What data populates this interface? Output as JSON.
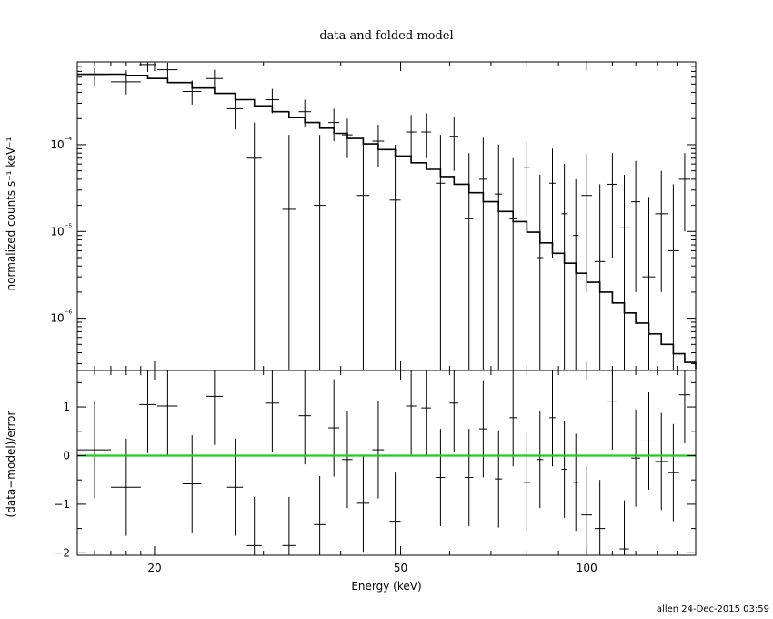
{
  "chart_data": {
    "type": "line",
    "title": "data and folded model",
    "xlabel": "Energy (keV)",
    "x_scale": "log",
    "xlim": [
      15,
      150
    ],
    "x_ticks": [
      {
        "value": 20,
        "label": "20"
      },
      {
        "value": 50,
        "label": "50"
      },
      {
        "value": 100,
        "label": "100"
      }
    ],
    "top_panel": {
      "ylabel": "normalized counts s⁻¹ keV⁻¹",
      "y_scale": "log",
      "ylim": [
        2.5e-07,
        0.0009
      ],
      "y_ticks": [
        {
          "value": 0.0001,
          "label": "10⁻⁴"
        },
        {
          "value": 1e-05,
          "label": "10⁻⁵"
        },
        {
          "value": 1e-06,
          "label": "10⁻⁶"
        }
      ],
      "model": [
        [
          15.0,
          0.00065
        ],
        [
          18.0,
          0.00063
        ],
        [
          19.5,
          0.00058
        ],
        [
          21.0,
          0.00052
        ],
        [
          23.0,
          0.00045
        ],
        [
          25.0,
          0.00039
        ],
        [
          27.0,
          0.00033
        ],
        [
          29.0,
          0.00028
        ],
        [
          31.0,
          0.00024
        ],
        [
          33.0,
          0.000205
        ],
        [
          35.0,
          0.00018
        ],
        [
          37.0,
          0.000155
        ],
        [
          39.0,
          0.000135
        ],
        [
          41.0,
          0.000118
        ],
        [
          43.5,
          0.000102
        ],
        [
          46.0,
          8.8e-05
        ],
        [
          49.0,
          7.4e-05
        ],
        [
          52.0,
          6.2e-05
        ],
        [
          55.0,
          5.2e-05
        ],
        [
          58.0,
          4.3e-05
        ],
        [
          61.0,
          3.5e-05
        ],
        [
          64.5,
          2.8e-05
        ],
        [
          68.0,
          2.2e-05
        ],
        [
          72.0,
          1.7e-05
        ],
        [
          76.0,
          1.3e-05
        ],
        [
          80.0,
          9.8e-06
        ],
        [
          84.0,
          7.4e-06
        ],
        [
          88.0,
          5.6e-06
        ],
        [
          92.0,
          4.3e-06
        ],
        [
          96.0,
          3.3e-06
        ],
        [
          100.0,
          2.6e-06
        ],
        [
          105.0,
          2e-06
        ],
        [
          110.0,
          1.5e-06
        ],
        [
          115.0,
          1.15e-06
        ],
        [
          120.0,
          8.8e-07
        ],
        [
          126.0,
          6.6e-07
        ],
        [
          132.0,
          5e-07
        ],
        [
          138.0,
          3.9e-07
        ],
        [
          144.0,
          3.1e-07
        ],
        [
          150.0,
          2.6e-07
        ]
      ],
      "data": [
        {
          "x": 16.0,
          "xerr": [
            15.0,
            17.0
          ],
          "y": 0.00062,
          "ylo": 0.00048,
          "yhi": 0.00076
        },
        {
          "x": 18.0,
          "xerr": [
            17.0,
            19.0
          ],
          "y": 0.00053,
          "ylo": 0.00038,
          "yhi": 0.00072
        },
        {
          "x": 19.5,
          "xerr": [
            18.9,
            20.1
          ],
          "y": 0.00084,
          "ylo": 0.00069,
          "yhi": 0.0009
        },
        {
          "x": 21.0,
          "xerr": [
            20.2,
            21.8
          ],
          "y": 0.00073,
          "ylo": 0.00058,
          "yhi": 0.00088
        },
        {
          "x": 23.0,
          "xerr": [
            22.2,
            23.8
          ],
          "y": 0.00041,
          "ylo": 0.00029,
          "yhi": 0.00055
        },
        {
          "x": 25.0,
          "xerr": [
            24.2,
            25.8
          ],
          "y": 0.00058,
          "ylo": 0.00043,
          "yhi": 0.00073
        },
        {
          "x": 27.0,
          "xerr": [
            26.2,
            27.8
          ],
          "y": 0.00026,
          "ylo": 0.00015,
          "yhi": 0.00037
        },
        {
          "x": 29.0,
          "xerr": [
            28.2,
            29.8
          ],
          "y": 7e-05,
          "ylo": 2.5e-07,
          "yhi": 0.00018
        },
        {
          "x": 31.0,
          "xerr": [
            30.2,
            31.8
          ],
          "y": 0.00033,
          "ylo": 0.00023,
          "yhi": 0.00044
        },
        {
          "x": 33.0,
          "xerr": [
            32.2,
            33.8
          ],
          "y": 1.8e-05,
          "ylo": 2.5e-07,
          "yhi": 0.00013
        },
        {
          "x": 35.0,
          "xerr": [
            34.2,
            35.8
          ],
          "y": 0.00024,
          "ylo": 0.00016,
          "yhi": 0.00033
        },
        {
          "x": 37.0,
          "xerr": [
            36.2,
            37.8
          ],
          "y": 2e-05,
          "ylo": 2.5e-07,
          "yhi": 0.00013
        },
        {
          "x": 39.0,
          "xerr": [
            38.2,
            39.8
          ],
          "y": 0.00018,
          "ylo": 0.00011,
          "yhi": 0.00026
        },
        {
          "x": 41.0,
          "xerr": [
            40.2,
            41.8
          ],
          "y": 0.00013,
          "ylo": 7e-05,
          "yhi": 0.0002
        },
        {
          "x": 43.5,
          "xerr": [
            42.5,
            44.5
          ],
          "y": 2.6e-05,
          "ylo": 2.5e-07,
          "yhi": 0.00012
        },
        {
          "x": 46.0,
          "xerr": [
            45.0,
            47.0
          ],
          "y": 0.00011,
          "ylo": 5.5e-05,
          "yhi": 0.00017
        },
        {
          "x": 49.0,
          "xerr": [
            48.0,
            50.0
          ],
          "y": 2.3e-05,
          "ylo": 2.5e-07,
          "yhi": 0.0001
        },
        {
          "x": 52.0,
          "xerr": [
            51.0,
            53.0
          ],
          "y": 0.00014,
          "ylo": 7e-05,
          "yhi": 0.00022
        },
        {
          "x": 55.0,
          "xerr": [
            54.0,
            56.0
          ],
          "y": 0.00014,
          "ylo": 7e-05,
          "yhi": 0.00023
        },
        {
          "x": 58.0,
          "xerr": [
            57.0,
            59.0
          ],
          "y": 3.6e-05,
          "ylo": 2.5e-07,
          "yhi": 0.00013
        },
        {
          "x": 61.0,
          "xerr": [
            60.0,
            62.0
          ],
          "y": 0.000125,
          "ylo": 5e-05,
          "yhi": 0.00021
        },
        {
          "x": 64.5,
          "xerr": [
            63.5,
            65.5
          ],
          "y": 1.4e-05,
          "ylo": 2.5e-07,
          "yhi": 8e-05
        },
        {
          "x": 68.0,
          "xerr": [
            67.0,
            69.0
          ],
          "y": 4e-05,
          "ylo": 2.5e-07,
          "yhi": 0.00012
        },
        {
          "x": 72.0,
          "xerr": [
            71.0,
            73.0
          ],
          "y": 2.7e-05,
          "ylo": 2.5e-07,
          "yhi": 0.0001
        },
        {
          "x": 76.0,
          "xerr": [
            75.0,
            77.0
          ],
          "y": 1.4e-05,
          "ylo": 2.5e-07,
          "yhi": 7e-05
        },
        {
          "x": 80.0,
          "xerr": [
            79.0,
            81.0
          ],
          "y": 5.5e-05,
          "ylo": 1.5e-05,
          "yhi": 0.00011
        },
        {
          "x": 84.0,
          "xerr": [
            83.0,
            85.0
          ],
          "y": 5e-06,
          "ylo": 2.5e-07,
          "yhi": 4.5e-05
        },
        {
          "x": 88.0,
          "xerr": [
            87.0,
            89.0
          ],
          "y": 3.6e-05,
          "ylo": 5e-06,
          "yhi": 9e-05
        },
        {
          "x": 92.0,
          "xerr": [
            91.0,
            93.0
          ],
          "y": 1.6e-05,
          "ylo": 2.5e-07,
          "yhi": 6e-05
        },
        {
          "x": 96.0,
          "xerr": [
            95.0,
            97.0
          ],
          "y": 9e-06,
          "ylo": 2.5e-07,
          "yhi": 4e-05
        },
        {
          "x": 100.0,
          "xerr": [
            98.0,
            102.0
          ],
          "y": 2.6e-05,
          "ylo": 2e-06,
          "yhi": 8e-05
        },
        {
          "x": 105.0,
          "xerr": [
            103.0,
            107.0
          ],
          "y": 4.5e-06,
          "ylo": 2.5e-07,
          "yhi": 3.5e-05
        },
        {
          "x": 110.0,
          "xerr": [
            108.0,
            112.0
          ],
          "y": 3.5e-05,
          "ylo": 5e-06,
          "yhi": 8e-05
        },
        {
          "x": 115.0,
          "xerr": [
            113.0,
            117.0
          ],
          "y": 1.1e-05,
          "ylo": 2.5e-07,
          "yhi": 4.5e-05
        },
        {
          "x": 120.0,
          "xerr": [
            118.0,
            122.0
          ],
          "y": 2.2e-05,
          "ylo": 2e-06,
          "yhi": 6.5e-05
        },
        {
          "x": 126.0,
          "xerr": [
            123.0,
            129.0
          ],
          "y": 3e-06,
          "ylo": 2.5e-07,
          "yhi": 2.5e-05
        },
        {
          "x": 132.0,
          "xerr": [
            129.0,
            135.0
          ],
          "y": 1.6e-05,
          "ylo": 2e-06,
          "yhi": 5e-05
        },
        {
          "x": 138.0,
          "xerr": [
            135.0,
            141.0
          ],
          "y": 6e-06,
          "ylo": 2.5e-07,
          "yhi": 3.5e-05
        },
        {
          "x": 144.0,
          "xerr": [
            141.0,
            147.0
          ],
          "y": 4e-05,
          "ylo": 1e-05,
          "yhi": 8e-05
        }
      ]
    },
    "bottom_panel": {
      "ylabel": "(data−model)/error",
      "ylim": [
        -2.05,
        1.75
      ],
      "y_ticks": [
        {
          "value": 1,
          "label": "1"
        },
        {
          "value": 0,
          "label": "0"
        },
        {
          "value": -1,
          "label": "−1"
        },
        {
          "value": -2,
          "label": "−2"
        }
      ],
      "zero_line_color": "#22cc22",
      "residuals": [
        {
          "x": 16.0,
          "xerr": [
            15.0,
            17.0
          ],
          "y": 0.12,
          "err": 1.0
        },
        {
          "x": 18.0,
          "xerr": [
            17.0,
            19.0
          ],
          "y": -0.65,
          "err": 1.0
        },
        {
          "x": 19.5,
          "xerr": [
            18.9,
            20.1
          ],
          "y": 1.05,
          "err": 1.0
        },
        {
          "x": 21.0,
          "xerr": [
            20.2,
            21.8
          ],
          "y": 1.02,
          "err": 1.0
        },
        {
          "x": 23.0,
          "xerr": [
            22.2,
            23.8
          ],
          "y": -0.58,
          "err": 1.0
        },
        {
          "x": 25.0,
          "xerr": [
            24.2,
            25.8
          ],
          "y": 1.22,
          "err": 1.0
        },
        {
          "x": 27.0,
          "xerr": [
            26.2,
            27.8
          ],
          "y": -0.65,
          "err": 1.0
        },
        {
          "x": 29.0,
          "xerr": [
            28.2,
            29.8
          ],
          "y": -1.85,
          "err": 1.0
        },
        {
          "x": 31.0,
          "xerr": [
            30.2,
            31.8
          ],
          "y": 1.08,
          "err": 1.0
        },
        {
          "x": 33.0,
          "xerr": [
            32.2,
            33.8
          ],
          "y": -1.85,
          "err": 1.0
        },
        {
          "x": 35.0,
          "xerr": [
            34.2,
            35.8
          ],
          "y": 0.82,
          "err": 1.0
        },
        {
          "x": 37.0,
          "xerr": [
            36.2,
            37.8
          ],
          "y": -1.42,
          "err": 1.0
        },
        {
          "x": 39.0,
          "xerr": [
            38.2,
            39.8
          ],
          "y": 0.57,
          "err": 1.0
        },
        {
          "x": 41.0,
          "xerr": [
            40.2,
            41.8
          ],
          "y": -0.08,
          "err": 1.0
        },
        {
          "x": 43.5,
          "xerr": [
            42.5,
            44.5
          ],
          "y": -0.98,
          "err": 1.0
        },
        {
          "x": 46.0,
          "xerr": [
            45.0,
            47.0
          ],
          "y": 0.12,
          "err": 1.0
        },
        {
          "x": 49.0,
          "xerr": [
            48.0,
            50.0
          ],
          "y": -1.35,
          "err": 1.0
        },
        {
          "x": 52.0,
          "xerr": [
            51.0,
            53.0
          ],
          "y": 1.02,
          "err": 1.0
        },
        {
          "x": 55.0,
          "xerr": [
            54.0,
            56.0
          ],
          "y": 0.98,
          "err": 1.0
        },
        {
          "x": 58.0,
          "xerr": [
            57.0,
            59.0
          ],
          "y": -0.45,
          "err": 1.0
        },
        {
          "x": 61.0,
          "xerr": [
            60.0,
            62.0
          ],
          "y": 1.08,
          "err": 1.0
        },
        {
          "x": 64.5,
          "xerr": [
            63.5,
            65.5
          ],
          "y": -0.45,
          "err": 1.0
        },
        {
          "x": 68.0,
          "xerr": [
            67.0,
            69.0
          ],
          "y": 0.55,
          "err": 1.0
        },
        {
          "x": 72.0,
          "xerr": [
            71.0,
            73.0
          ],
          "y": -0.48,
          "err": 1.0
        },
        {
          "x": 76.0,
          "xerr": [
            75.0,
            77.0
          ],
          "y": 0.78,
          "err": 1.0
        },
        {
          "x": 80.0,
          "xerr": [
            79.0,
            81.0
          ],
          "y": -0.55,
          "err": 1.0
        },
        {
          "x": 84.0,
          "xerr": [
            83.0,
            85.0
          ],
          "y": -0.08,
          "err": 1.0
        },
        {
          "x": 88.0,
          "xerr": [
            87.0,
            89.0
          ],
          "y": 0.78,
          "err": 1.0
        },
        {
          "x": 92.0,
          "xerr": [
            91.0,
            93.0
          ],
          "y": -0.28,
          "err": 1.0
        },
        {
          "x": 96.0,
          "xerr": [
            95.0,
            97.0
          ],
          "y": -0.55,
          "err": 1.0
        },
        {
          "x": 100.0,
          "xerr": [
            98.0,
            102.0
          ],
          "y": -1.22,
          "err": 1.0
        },
        {
          "x": 105.0,
          "xerr": [
            103.0,
            107.0
          ],
          "y": -1.5,
          "err": 1.0
        },
        {
          "x": 110.0,
          "xerr": [
            108.0,
            112.0
          ],
          "y": 1.12,
          "err": 1.0
        },
        {
          "x": 115.0,
          "xerr": [
            113.0,
            117.0
          ],
          "y": -1.92,
          "err": 1.0
        },
        {
          "x": 120.0,
          "xerr": [
            118.0,
            122.0
          ],
          "y": -0.05,
          "err": 1.0
        },
        {
          "x": 126.0,
          "xerr": [
            123.0,
            129.0
          ],
          "y": 0.3,
          "err": 1.0
        },
        {
          "x": 132.0,
          "xerr": [
            129.0,
            135.0
          ],
          "y": -0.12,
          "err": 1.0
        },
        {
          "x": 138.0,
          "xerr": [
            135.0,
            141.0
          ],
          "y": -0.35,
          "err": 1.0
        },
        {
          "x": 144.0,
          "xerr": [
            141.0,
            147.0
          ],
          "y": 1.25,
          "err": 1.0
        }
      ]
    }
  },
  "footer": "allen 24-Dec-2015 03:59"
}
